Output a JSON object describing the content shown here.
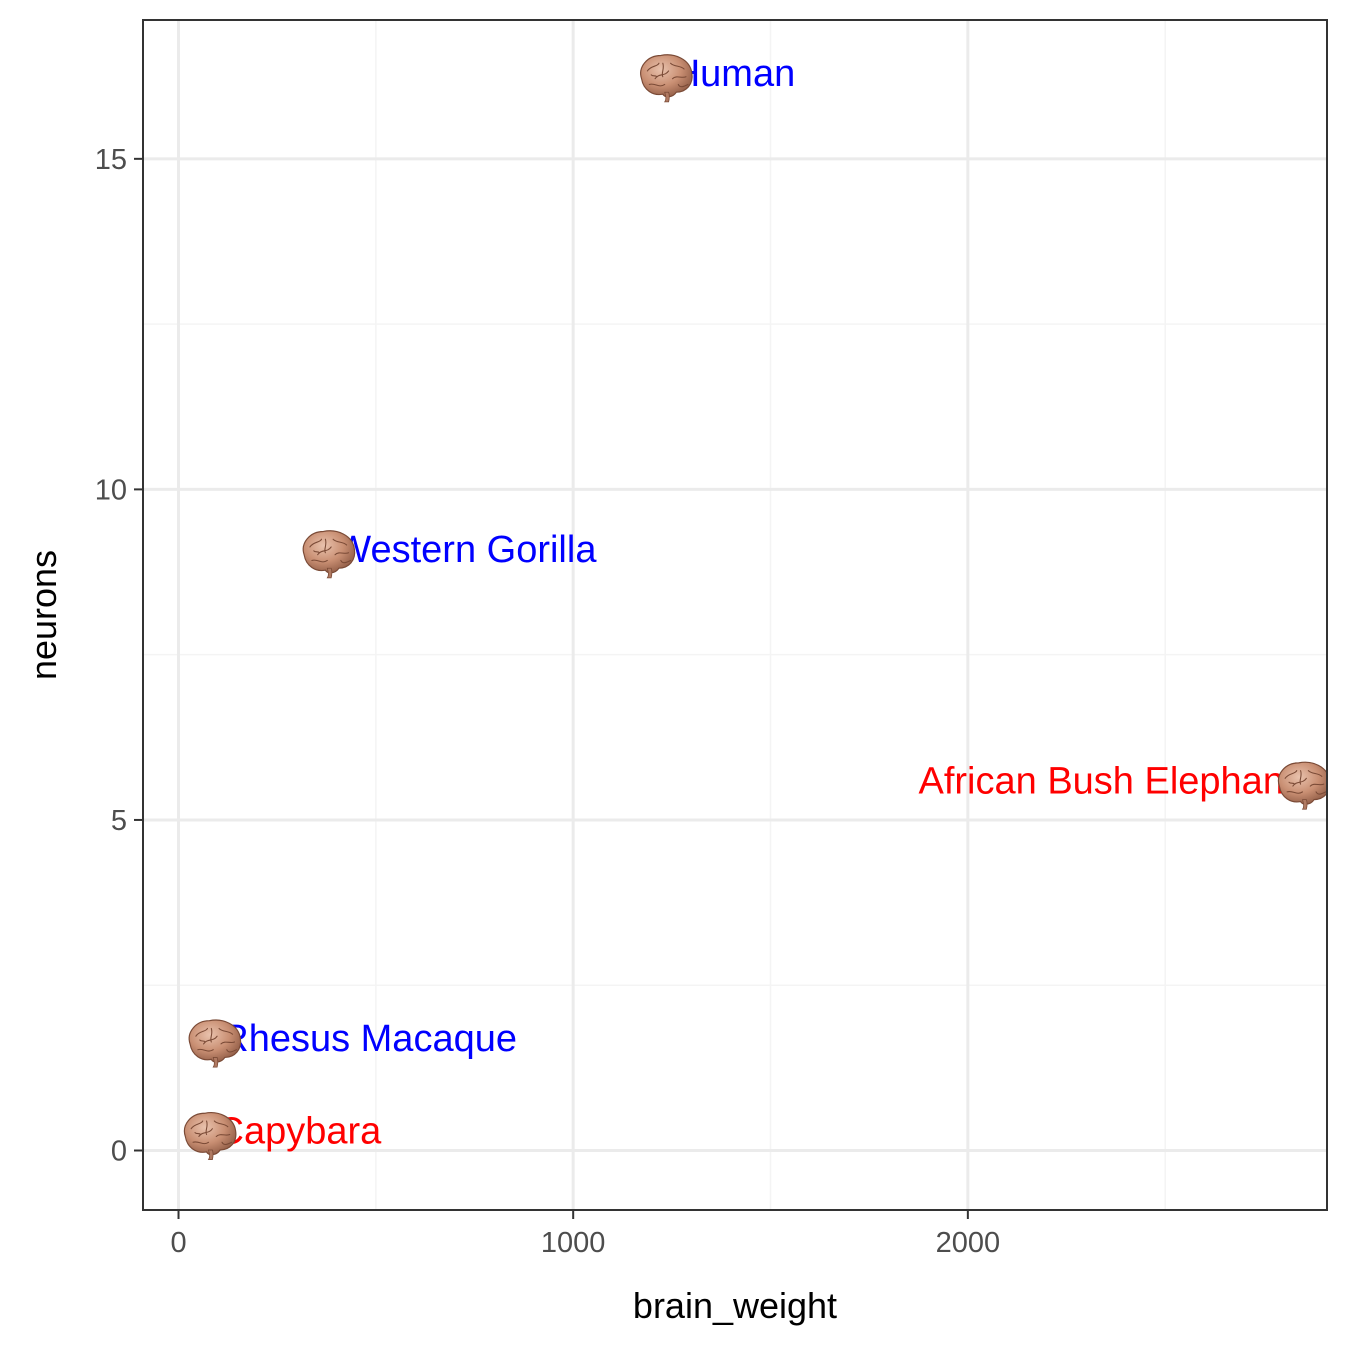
{
  "chart_data": {
    "type": "scatter",
    "title": "",
    "xlabel": "brain_weight",
    "ylabel": "neurons",
    "xlim": [
      -90,
      2910
    ],
    "ylim": [
      -0.9,
      17.1
    ],
    "x_ticks": [
      0,
      1000,
      2000
    ],
    "x_tick_labels": [
      "0",
      "1000",
      "2000"
    ],
    "x_minor_ticks": [
      500,
      1500,
      2500
    ],
    "y_ticks": [
      0,
      5,
      10,
      15
    ],
    "y_tick_labels": [
      "0",
      "5",
      "10",
      "15"
    ],
    "y_minor_ticks": [
      2.5,
      7.5,
      12.5
    ],
    "grid": true,
    "marker": "brain-icon",
    "points": [
      {
        "name": "Capybara",
        "label": "Capybara",
        "x": 76,
        "y": 0.3,
        "color": "#ff0000",
        "label_side": "right"
      },
      {
        "name": "Rhesus Macaque",
        "label": "Rhesus Macaque",
        "x": 88,
        "y": 1.7,
        "color": "#0000ff",
        "label_side": "right"
      },
      {
        "name": "Western Gorilla",
        "label": "Western Gorilla",
        "x": 377,
        "y": 9.1,
        "color": "#0000ff",
        "label_side": "right"
      },
      {
        "name": "Human",
        "label": "Human",
        "x": 1232,
        "y": 16.3,
        "color": "#0000ff",
        "label_side": "right"
      },
      {
        "name": "African Bush Elephant",
        "label": "African Bush Elephant",
        "x": 2848,
        "y": 5.6,
        "color": "#ff0000",
        "label_side": "left"
      }
    ]
  },
  "colors": {
    "panel_border": "#333333",
    "grid_major": "#ebebeb",
    "grid_minor": "#f4f4f4",
    "tick_text": "#4d4d4d"
  }
}
